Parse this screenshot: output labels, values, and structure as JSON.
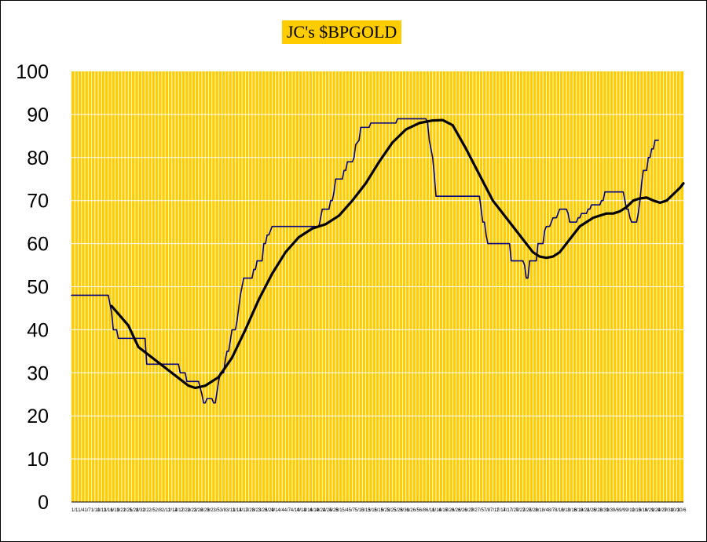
{
  "chart_data": {
    "type": "line",
    "title": "JC's $BPGOLD",
    "xlabel": "",
    "ylabel": "",
    "ylim": [
      0,
      100
    ],
    "yticks": [
      0,
      10,
      20,
      30,
      40,
      50,
      60,
      70,
      80,
      90,
      100
    ],
    "grid": {
      "vertical": true,
      "horizontal": true
    },
    "colors": {
      "plot_bg": "#ffcc00",
      "grid": "#ffffff",
      "series_main": "#000080",
      "series_avg": "#000000"
    },
    "x_tick_labels": [
      "1/1",
      "1/4",
      "1/7",
      "1/10",
      "1/13",
      "1/16",
      "1/19",
      "1/22",
      "1/25",
      "1/28",
      "1/31",
      "2/2",
      "2/5",
      "2/8",
      "2/11",
      "2/14",
      "2/17",
      "2/20",
      "2/23",
      "2/26",
      "2/29",
      "3/2",
      "3/5",
      "3/8",
      "3/11",
      "3/14",
      "3/17",
      "3/20",
      "3/23",
      "3/26",
      "3/29",
      "4/1",
      "4/4",
      "4/7",
      "4/10",
      "4/13",
      "4/16",
      "4/19",
      "4/22",
      "4/25",
      "4/28",
      "5/1",
      "5/4",
      "5/7",
      "5/10",
      "5/13",
      "5/16",
      "5/19",
      "5/22",
      "5/25",
      "5/28",
      "5/31",
      "6/2",
      "6/5",
      "6/8",
      "6/11",
      "6/14",
      "6/17",
      "6/20",
      "6/23",
      "6/26",
      "6/29",
      "7/2",
      "7/5",
      "7/8",
      "7/11",
      "7/14",
      "7/17",
      "7/20",
      "7/23",
      "7/26",
      "7/29",
      "8/1",
      "8/4",
      "8/7",
      "8/10",
      "8/13",
      "8/16",
      "8/19",
      "8/22",
      "8/25",
      "8/28",
      "8/31",
      "9/3",
      "9/6",
      "9/9",
      "9/12",
      "9/15",
      "9/18",
      "9/21",
      "9/24",
      "9/27",
      "9/30",
      "10/3",
      "10/6"
    ],
    "series": [
      {
        "values": [
          [
            0,
            48
          ],
          [
            11,
            48
          ],
          [
            11.5,
            46
          ],
          [
            12,
            44
          ],
          [
            12.5,
            40
          ],
          [
            13.5,
            40
          ],
          [
            14,
            38
          ],
          [
            22,
            38
          ],
          [
            22.5,
            32
          ],
          [
            32,
            32
          ],
          [
            32.5,
            30
          ],
          [
            34,
            30
          ],
          [
            34.5,
            28
          ],
          [
            38,
            28
          ],
          [
            39,
            25
          ],
          [
            39.5,
            23
          ],
          [
            40,
            23
          ],
          [
            40.5,
            24
          ],
          [
            42,
            24
          ],
          [
            42.5,
            23
          ],
          [
            43,
            23
          ],
          [
            44,
            28
          ],
          [
            44.5,
            30
          ],
          [
            45.5,
            30
          ],
          [
            46,
            33
          ],
          [
            46.5,
            35
          ],
          [
            47,
            35
          ],
          [
            48,
            40
          ],
          [
            49,
            40
          ],
          [
            49.5,
            42
          ],
          [
            50,
            45
          ],
          [
            50.5,
            48
          ],
          [
            51,
            50
          ],
          [
            51.5,
            52
          ],
          [
            54,
            52
          ],
          [
            54.5,
            54
          ],
          [
            55,
            54
          ],
          [
            55.5,
            56
          ],
          [
            57,
            56
          ],
          [
            57.5,
            60
          ],
          [
            58,
            60
          ],
          [
            58.5,
            62
          ],
          [
            59,
            62
          ],
          [
            60,
            64
          ],
          [
            74,
            64
          ],
          [
            74.5,
            66
          ],
          [
            75,
            68
          ],
          [
            77,
            68
          ],
          [
            77.5,
            70
          ],
          [
            78,
            70
          ],
          [
            78.5,
            72
          ],
          [
            79,
            75
          ],
          [
            81,
            75
          ],
          [
            81.5,
            77
          ],
          [
            82,
            77
          ],
          [
            82.5,
            79
          ],
          [
            84,
            79
          ],
          [
            84.5,
            80
          ],
          [
            85,
            83
          ],
          [
            86,
            84
          ],
          [
            86.5,
            87
          ],
          [
            89,
            87
          ],
          [
            89.5,
            88
          ],
          [
            97,
            88
          ],
          [
            97.5,
            89
          ],
          [
            106,
            89
          ],
          [
            106.5,
            88
          ],
          [
            107,
            84
          ],
          [
            108,
            80
          ],
          [
            108.5,
            76
          ],
          [
            109,
            71
          ],
          [
            122,
            71
          ],
          [
            122.5,
            68
          ],
          [
            123,
            65
          ],
          [
            123.5,
            65
          ],
          [
            124,
            62
          ],
          [
            124.5,
            60
          ],
          [
            131,
            60
          ],
          [
            131.5,
            56
          ],
          [
            135,
            56
          ],
          [
            135.5,
            55
          ],
          [
            136,
            52
          ],
          [
            136.5,
            52
          ],
          [
            137,
            56
          ],
          [
            139,
            56
          ],
          [
            139.5,
            60
          ],
          [
            141,
            60
          ],
          [
            141.5,
            63
          ],
          [
            142,
            64
          ],
          [
            143,
            64
          ],
          [
            143.5,
            65
          ],
          [
            144,
            66
          ],
          [
            145,
            66
          ],
          [
            145.5,
            67
          ],
          [
            146,
            68
          ],
          [
            148,
            68
          ],
          [
            148.5,
            67
          ],
          [
            149,
            65
          ],
          [
            151,
            65
          ],
          [
            151.5,
            66
          ],
          [
            152,
            66
          ],
          [
            152.5,
            67
          ],
          [
            154,
            67
          ],
          [
            154.5,
            68
          ],
          [
            155,
            68
          ],
          [
            155.5,
            69
          ],
          [
            158,
            69
          ],
          [
            158.5,
            70
          ],
          [
            159,
            70
          ],
          [
            159.5,
            72
          ],
          [
            165,
            72
          ],
          [
            165.5,
            70
          ],
          [
            166,
            68
          ],
          [
            166.5,
            68
          ],
          [
            167,
            66
          ],
          [
            167.5,
            65
          ],
          [
            169,
            65
          ],
          [
            169.5,
            67
          ],
          [
            170,
            70
          ],
          [
            170.5,
            74
          ],
          [
            171,
            77
          ],
          [
            172,
            77
          ],
          [
            172.5,
            80
          ],
          [
            173,
            80
          ],
          [
            173.5,
            82
          ],
          [
            174,
            82
          ],
          [
            174.5,
            84
          ],
          [
            175.5,
            84
          ]
        ]
      },
      {
        "values": [
          [
            12,
            45.5
          ],
          [
            17,
            41
          ],
          [
            20,
            36
          ],
          [
            25,
            33
          ],
          [
            30,
            30
          ],
          [
            35,
            27
          ],
          [
            37,
            26.5
          ],
          [
            40,
            27
          ],
          [
            44,
            29
          ],
          [
            48,
            33.5
          ],
          [
            52,
            40
          ],
          [
            56,
            47
          ],
          [
            60,
            53
          ],
          [
            64,
            58
          ],
          [
            68,
            61.5
          ],
          [
            72,
            63.5
          ],
          [
            76,
            64.5
          ],
          [
            80,
            66.5
          ],
          [
            84,
            70
          ],
          [
            88,
            74
          ],
          [
            92,
            79
          ],
          [
            96,
            83.5
          ],
          [
            100,
            86.5
          ],
          [
            104,
            88
          ],
          [
            108,
            88.6
          ],
          [
            111,
            88.7
          ],
          [
            114,
            87.5
          ],
          [
            118,
            82
          ],
          [
            122,
            76
          ],
          [
            126,
            70
          ],
          [
            130,
            66
          ],
          [
            134,
            62
          ],
          [
            136,
            60
          ],
          [
            138,
            58
          ],
          [
            140,
            57
          ],
          [
            142,
            56.7
          ],
          [
            144,
            57
          ],
          [
            146,
            58
          ],
          [
            148,
            60
          ],
          [
            150,
            62
          ],
          [
            152,
            64
          ],
          [
            154,
            65
          ],
          [
            156,
            66
          ],
          [
            158,
            66.5
          ],
          [
            160,
            67
          ],
          [
            162,
            67
          ],
          [
            164,
            67.5
          ],
          [
            166,
            68.5
          ],
          [
            168,
            70
          ],
          [
            170,
            70.5
          ],
          [
            172,
            70.7
          ],
          [
            174,
            70
          ],
          [
            176,
            69.5
          ],
          [
            178,
            70
          ],
          [
            180,
            71.5
          ],
          [
            182,
            73
          ],
          [
            183,
            74
          ]
        ]
      }
    ]
  }
}
